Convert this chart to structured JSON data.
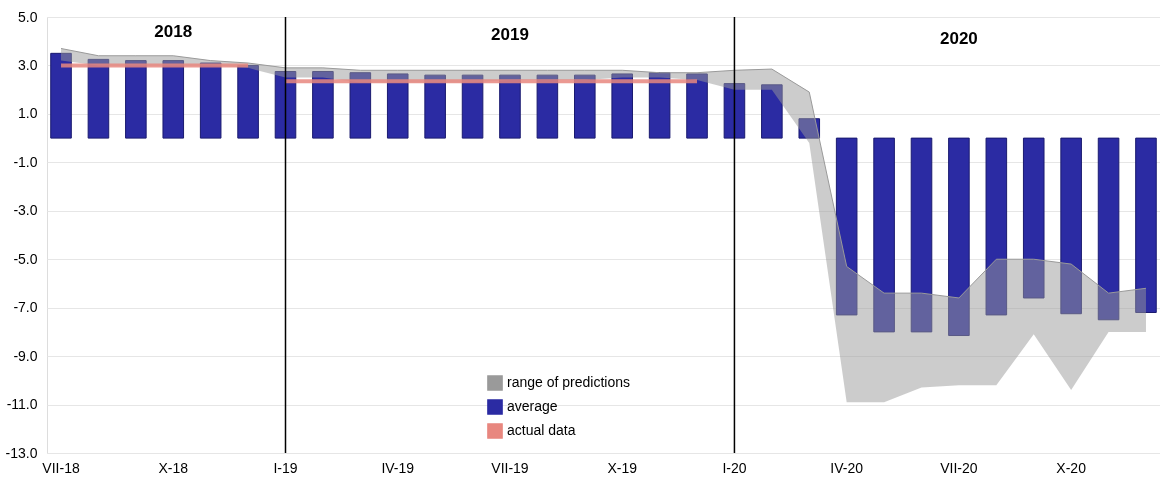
{
  "chart_data": {
    "type": "bar",
    "categories": [
      "VII-18",
      null,
      null,
      "X-18",
      null,
      null,
      "I-19",
      null,
      null,
      "IV-19",
      null,
      null,
      "VII-19",
      null,
      null,
      "X-19",
      null,
      null,
      "I-20",
      null,
      null,
      "IV-20",
      null,
      null,
      "VII-20",
      null,
      null,
      "X-20",
      null,
      null
    ],
    "series": [
      {
        "name": "range of predictions",
        "type": "line",
        "color": "#9a9a9a",
        "values": [
          3.7,
          3.4,
          3.4,
          3.4,
          3.2,
          3.1,
          2.9,
          2.9,
          2.8,
          2.8,
          2.8,
          2.8,
          2.8,
          2.8,
          2.8,
          2.8,
          2.7,
          2.7,
          2.8,
          2.85,
          1.9,
          -5.3,
          -6.4,
          -6.4,
          -6.6,
          -5.0,
          -5.0,
          -5.2,
          -6.4,
          -6.2
        ],
        "upper": [
          3.7,
          3.4,
          3.4,
          3.4,
          3.2,
          3.1,
          2.9,
          2.9,
          2.8,
          2.8,
          2.8,
          2.8,
          2.8,
          2.8,
          2.8,
          2.8,
          2.7,
          2.7,
          2.8,
          2.85,
          1.9,
          -5.3,
          -6.4,
          -6.4,
          -6.6,
          -5.0,
          -5.0,
          -5.2,
          -6.4,
          -6.2
        ],
        "lower": [
          3.2,
          3.0,
          3.0,
          3.0,
          3.0,
          2.9,
          2.5,
          2.5,
          2.3,
          2.3,
          2.3,
          2.3,
          2.4,
          2.4,
          2.4,
          2.5,
          2.5,
          2.4,
          2.0,
          2.0,
          -0.2,
          -10.9,
          -10.9,
          -10.3,
          -10.2,
          -10.2,
          -8.1,
          -10.4,
          -8.0,
          -8.0
        ]
      },
      {
        "name": "average",
        "color": "#2b2ba3",
        "values": [
          3.5,
          3.25,
          3.2,
          3.2,
          3.1,
          3.0,
          2.75,
          2.75,
          2.7,
          2.65,
          2.6,
          2.6,
          2.6,
          2.6,
          2.6,
          2.65,
          2.7,
          2.65,
          2.25,
          2.2,
          0.8,
          -7.3,
          -8.0,
          -8.0,
          -8.15,
          -7.3,
          -6.6,
          -7.25,
          -7.5,
          -7.2
        ]
      },
      {
        "name": "actual data",
        "type": "line",
        "color": "#e8877f",
        "values": [
          3.0,
          3.0,
          3.0,
          3.0,
          3.0,
          3.0,
          2.35,
          2.35,
          2.35,
          2.35,
          2.35,
          2.35,
          2.35,
          2.35,
          2.35,
          2.35,
          2.35,
          2.35,
          null,
          null,
          null,
          null,
          null,
          null,
          null,
          null,
          null,
          null,
          null,
          null
        ]
      }
    ],
    "ylim": [
      -13,
      5
    ],
    "yticks": [
      {
        "value": 5,
        "label": "5.0"
      },
      {
        "value": 3,
        "label": "3.0"
      },
      {
        "value": 1,
        "label": "1.0"
      },
      {
        "value": -1,
        "label": "-1.0"
      },
      {
        "value": -3,
        "label": "-3.0"
      },
      {
        "value": -5,
        "label": "-5.0"
      },
      {
        "value": -7,
        "label": "-7.0"
      },
      {
        "value": -9,
        "label": "-9.0"
      },
      {
        "value": -11,
        "label": "-11.0"
      },
      {
        "value": -13,
        "label": "-13.0"
      }
    ],
    "grid": "y",
    "legend": "bottom",
    "ref_lines": [
      {
        "axis": "x",
        "value": "I-19",
        "color": "#000000"
      },
      {
        "axis": "x",
        "value": "I-20",
        "color": "#000000"
      }
    ],
    "annotations": [
      "2018",
      "2019",
      "2020"
    ]
  }
}
